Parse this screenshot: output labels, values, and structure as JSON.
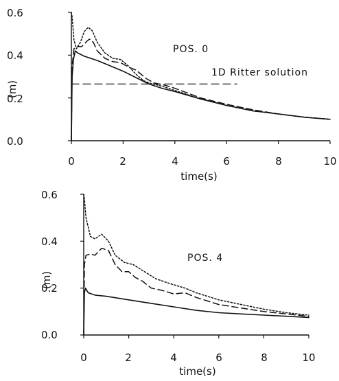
{
  "chart_data": [
    {
      "type": "line",
      "title": "",
      "xlabel": "time(s)",
      "ylabel": "(m)",
      "xlim": [
        0,
        10
      ],
      "ylim": [
        0,
        0.6
      ],
      "xticks": [
        0,
        2,
        4,
        6,
        8,
        10
      ],
      "yticks": [
        0.0,
        0.2,
        0.4,
        0.6
      ],
      "xtick_labels": [
        "0",
        "2",
        "4",
        "6",
        "8",
        "10"
      ],
      "ytick_labels": [
        "0.0",
        "0.2",
        "0.4",
        "0.6"
      ],
      "annotations": [
        "POS.  0",
        "1D  Ritter  solution"
      ],
      "reference_line": {
        "y": 0.265,
        "x_range": [
          0,
          6.4
        ],
        "style": "dashed"
      },
      "series": [
        {
          "style": "dotted",
          "x": [
            0,
            0.03,
            0.1,
            0.2,
            0.35,
            0.5,
            0.65,
            0.8,
            1.0,
            1.3,
            1.6,
            1.9,
            2.2,
            2.5,
            2.8,
            3.0,
            3.5,
            4.0,
            5.0,
            6.0,
            7.0,
            8.0,
            9.0,
            10.0
          ],
          "y": [
            0.6,
            0.58,
            0.47,
            0.43,
            0.46,
            0.51,
            0.53,
            0.515,
            0.46,
            0.41,
            0.385,
            0.38,
            0.35,
            0.31,
            0.28,
            0.27,
            0.255,
            0.235,
            0.195,
            0.165,
            0.14,
            0.125,
            0.11,
            0.1
          ]
        },
        {
          "style": "dashed",
          "x": [
            0,
            0.03,
            0.1,
            0.2,
            0.4,
            0.6,
            0.7,
            0.85,
            1.0,
            1.3,
            1.6,
            1.9,
            2.2,
            2.5,
            2.9,
            3.2,
            3.6,
            4.0,
            5.0,
            6.0,
            7.0,
            8.0,
            9.0,
            10.0
          ],
          "y": [
            0.0,
            0.35,
            0.43,
            0.44,
            0.44,
            0.465,
            0.475,
            0.46,
            0.42,
            0.385,
            0.37,
            0.365,
            0.345,
            0.33,
            0.29,
            0.27,
            0.26,
            0.245,
            0.2,
            0.17,
            0.145,
            0.125,
            0.11,
            0.1
          ]
        },
        {
          "style": "solid",
          "x": [
            0,
            0.03,
            0.08,
            0.15,
            0.25,
            0.5,
            1.0,
            1.5,
            2.0,
            2.5,
            3.0,
            3.5,
            4.0,
            5.0,
            6.0,
            7.0,
            8.0,
            9.0,
            10.0
          ],
          "y": [
            0.0,
            0.3,
            0.38,
            0.42,
            0.41,
            0.395,
            0.375,
            0.35,
            0.325,
            0.295,
            0.265,
            0.245,
            0.23,
            0.195,
            0.165,
            0.14,
            0.125,
            0.11,
            0.1
          ]
        }
      ]
    },
    {
      "type": "line",
      "title": "",
      "xlabel": "time(s)",
      "ylabel": "(m)",
      "xlim": [
        0,
        10
      ],
      "ylim": [
        0,
        0.6
      ],
      "xticks": [
        0,
        2,
        4,
        6,
        8,
        10
      ],
      "yticks": [
        0.0,
        0.2,
        0.4,
        0.6
      ],
      "xtick_labels": [
        "0",
        "2",
        "4",
        "6",
        "8",
        "10"
      ],
      "ytick_labels": [
        "0.0",
        "0.2",
        "0.4",
        "0.6"
      ],
      "annotations": [
        "POS. 4"
      ],
      "series": [
        {
          "style": "dotted",
          "x": [
            0,
            0.03,
            0.1,
            0.3,
            0.5,
            0.8,
            1.1,
            1.4,
            1.8,
            2.2,
            2.7,
            3.2,
            3.8,
            4.5,
            5.0,
            6.0,
            7.0,
            8.0,
            9.0,
            10.0
          ],
          "y": [
            0.6,
            0.58,
            0.5,
            0.42,
            0.41,
            0.43,
            0.4,
            0.34,
            0.31,
            0.3,
            0.27,
            0.24,
            0.22,
            0.2,
            0.18,
            0.15,
            0.13,
            0.11,
            0.095,
            0.085
          ]
        },
        {
          "style": "dashed",
          "x": [
            0,
            0.03,
            0.1,
            0.3,
            0.5,
            0.8,
            1.1,
            1.4,
            1.7,
            2.0,
            2.3,
            2.6,
            3.0,
            3.5,
            4.0,
            4.5,
            5.0,
            6.0,
            7.0,
            8.0,
            9.0,
            10.0
          ],
          "y": [
            0.0,
            0.3,
            0.34,
            0.345,
            0.34,
            0.37,
            0.36,
            0.3,
            0.27,
            0.27,
            0.245,
            0.23,
            0.2,
            0.19,
            0.175,
            0.18,
            0.16,
            0.13,
            0.115,
            0.1,
            0.09,
            0.08
          ]
        },
        {
          "style": "solid",
          "x": [
            0,
            0.03,
            0.08,
            0.2,
            0.5,
            1.0,
            2.0,
            3.0,
            4.0,
            5.0,
            6.0,
            7.0,
            8.0,
            9.0,
            10.0
          ],
          "y": [
            0.0,
            0.18,
            0.2,
            0.18,
            0.17,
            0.165,
            0.15,
            0.135,
            0.12,
            0.105,
            0.095,
            0.09,
            0.085,
            0.08,
            0.075
          ]
        }
      ]
    }
  ]
}
